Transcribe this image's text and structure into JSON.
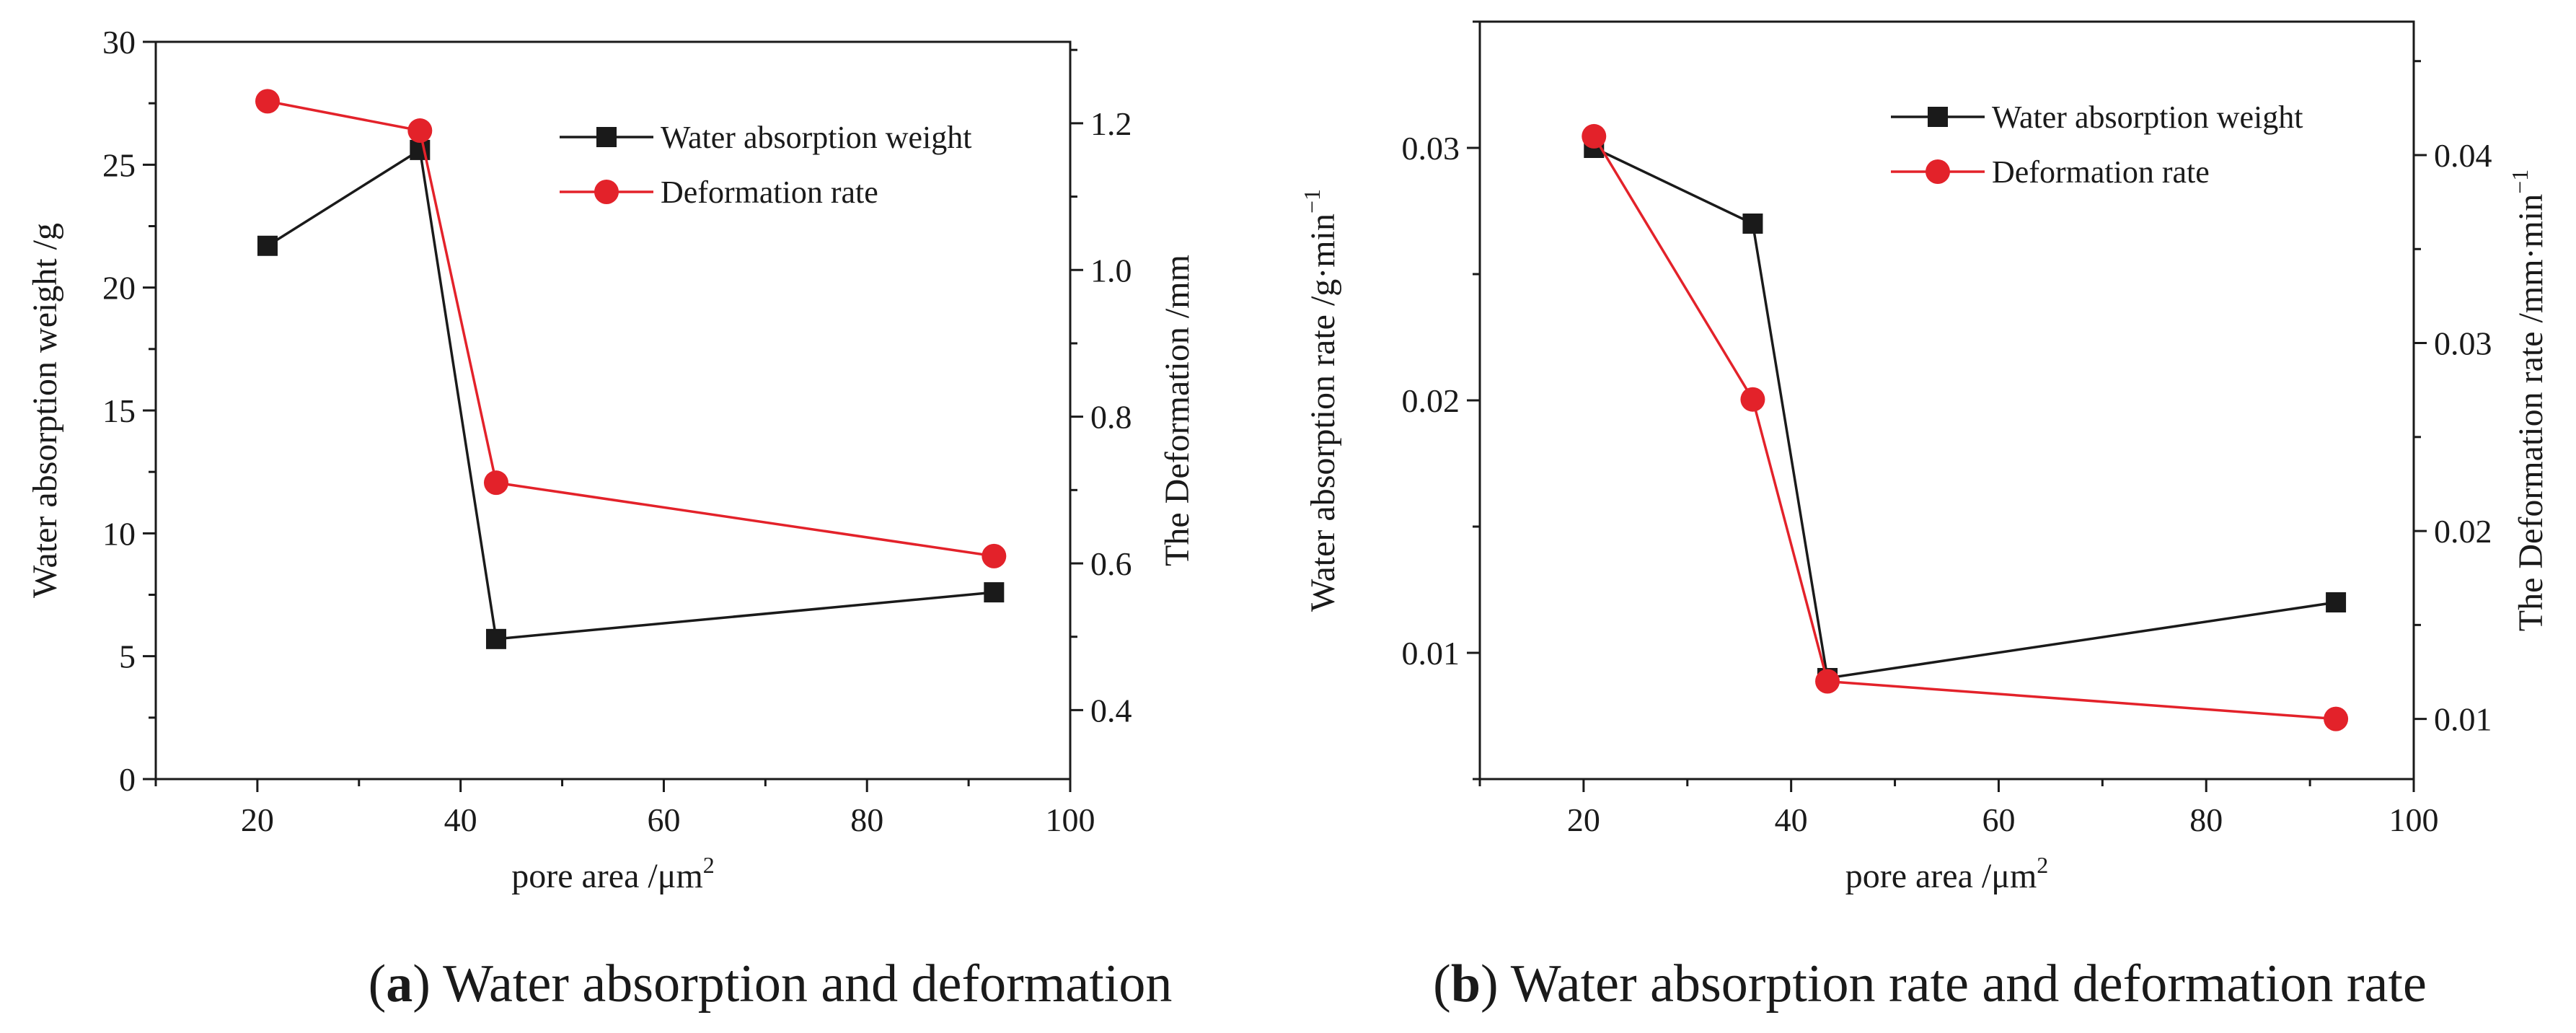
{
  "chart_data": [
    {
      "id": "a",
      "type": "line",
      "caption": {
        "prefix": "(",
        "letter": "a",
        "suffix": ")",
        "text": " Water absorption and deformation"
      },
      "xlabel": "pore area /μm",
      "xlabel_sup": "2",
      "ylabel_left": "Water absorption weight /g",
      "ylabel_right": "The Deformation  /mm",
      "xlim": [
        10,
        100
      ],
      "ylim_left": [
        0,
        30
      ],
      "ylim_right": [
        0.306,
        1.311
      ],
      "xticks": [
        20,
        40,
        60,
        80,
        100
      ],
      "xtick_labels": [
        "20",
        "40",
        "60",
        "80",
        "100"
      ],
      "yticks_left": [
        0,
        5,
        10,
        15,
        20,
        25,
        30
      ],
      "ytick_labels_left": [
        "0",
        "5",
        "10",
        "15",
        "20",
        "25",
        "30"
      ],
      "yticks_right": [
        0.4,
        0.6,
        0.8,
        1.0,
        1.2
      ],
      "ytick_labels_right": [
        "0.4",
        "0.6",
        "0.8",
        "1.0",
        "1.2"
      ],
      "legend_position": "top-right",
      "series": [
        {
          "name": "Water absorption weight",
          "axis": "left",
          "marker": "square",
          "color": "#1a1a1a",
          "x": [
            21,
            36,
            43.5,
            92.5
          ],
          "values": [
            21.7,
            25.6,
            5.7,
            7.6
          ]
        },
        {
          "name": "Deformation rate",
          "axis": "right",
          "marker": "circle",
          "color": "#e3222a",
          "x": [
            21,
            36,
            43.5,
            92.5
          ],
          "values": [
            1.23,
            1.19,
            0.71,
            0.61
          ]
        }
      ]
    },
    {
      "id": "b",
      "type": "line",
      "caption": {
        "prefix": "(",
        "letter": "b",
        "suffix": ")",
        "text": " Water absorption rate and deformation rate"
      },
      "xlabel": "pore area /μm",
      "xlabel_sup": "2",
      "ylabel_left": "Water absorption rate /g·min",
      "ylabel_left_sup": "−1",
      "ylabel_right": "The Deformation rate  /mm·min",
      "ylabel_right_sup": "−1",
      "xlim": [
        10,
        100
      ],
      "ylim_left": [
        0.005,
        0.035
      ],
      "ylim_right": [
        0.0068,
        0.0471
      ],
      "xticks": [
        20,
        40,
        60,
        80,
        100
      ],
      "xtick_labels": [
        "20",
        "40",
        "60",
        "80",
        "100"
      ],
      "yticks_left": [
        0.01,
        0.02,
        0.03
      ],
      "ytick_labels_left": [
        "0.01",
        "0.02",
        "0.03"
      ],
      "yticks_right": [
        0.01,
        0.02,
        0.03,
        0.04
      ],
      "ytick_labels_right": [
        "0.01",
        "0.02",
        "0.03",
        "0.04"
      ],
      "legend_position": "top-right",
      "series": [
        {
          "name": "Water absorption weight",
          "axis": "left",
          "marker": "square",
          "color": "#1a1a1a",
          "x": [
            21,
            36.3,
            43.5,
            92.5
          ],
          "values": [
            0.03,
            0.027,
            0.009,
            0.012
          ]
        },
        {
          "name": "Deformation rate",
          "axis": "right",
          "marker": "circle",
          "color": "#e3222a",
          "x": [
            21,
            36.3,
            43.5,
            92.5
          ],
          "values": [
            0.041,
            0.027,
            0.012,
            0.01
          ]
        }
      ]
    }
  ]
}
